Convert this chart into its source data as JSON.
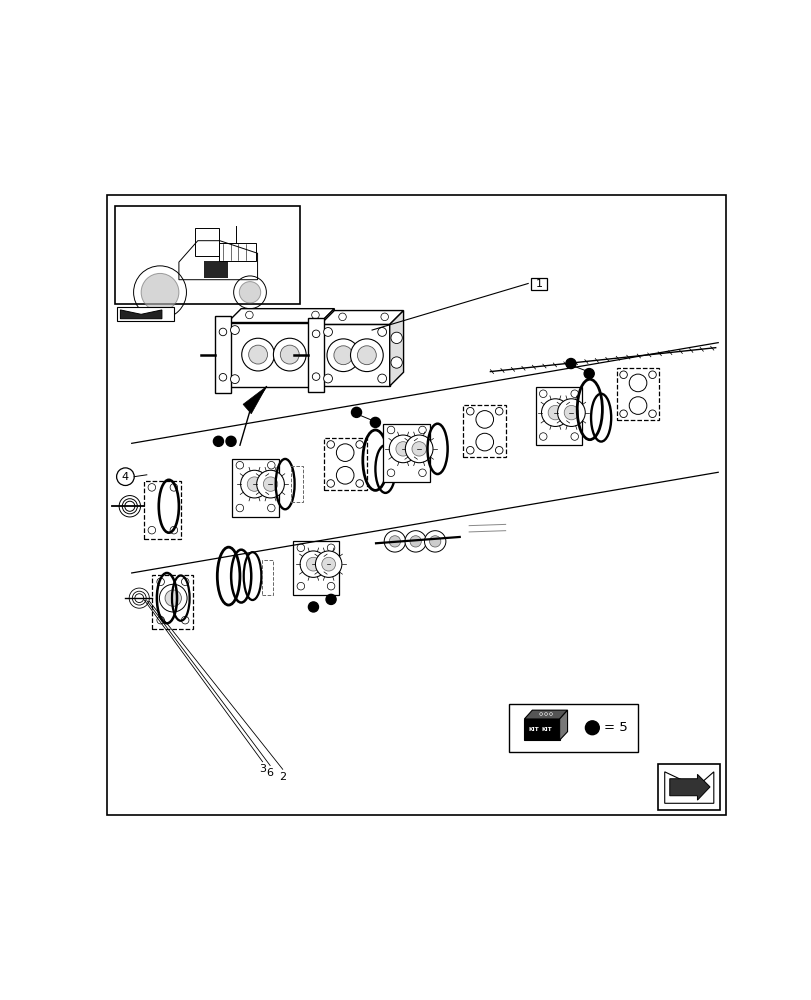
{
  "bg_color": "#ffffff",
  "line_color": "#000000",
  "gray_light": "#cccccc",
  "gray_mid": "#888888",
  "gray_dark": "#444444"
}
